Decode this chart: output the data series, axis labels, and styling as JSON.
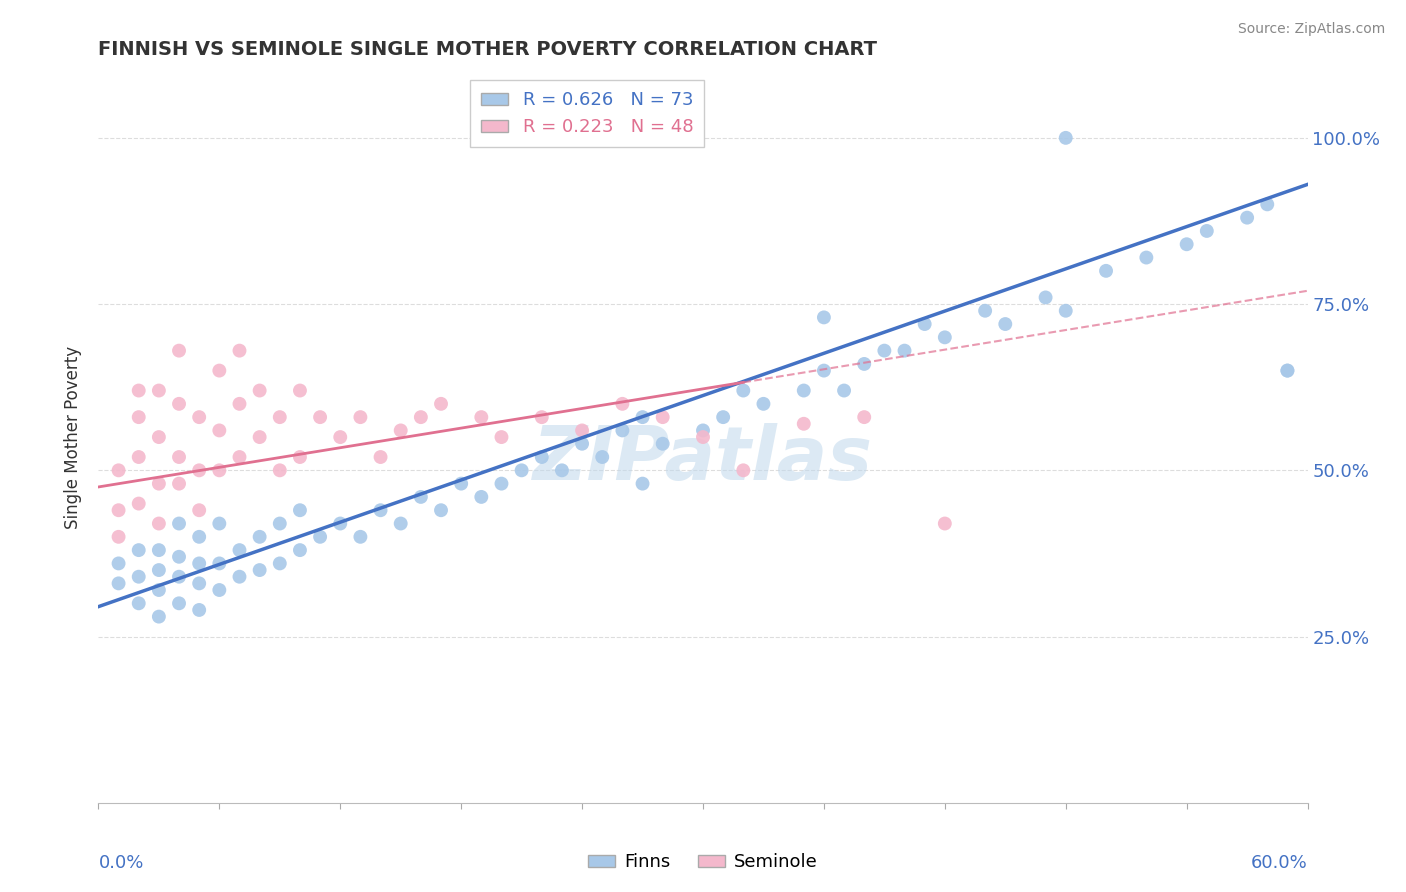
{
  "title": "FINNISH VS SEMINOLE SINGLE MOTHER POVERTY CORRELATION CHART",
  "source": "Source: ZipAtlas.com",
  "ylabel": "Single Mother Poverty",
  "ytick_labels": [
    "25.0%",
    "50.0%",
    "75.0%",
    "100.0%"
  ],
  "ytick_values": [
    0.25,
    0.5,
    0.75,
    1.0
  ],
  "xlim": [
    0.0,
    0.6
  ],
  "ylim": [
    0.0,
    1.1
  ],
  "blue_color": "#a8c8e8",
  "pink_color": "#f4b8cc",
  "blue_line_color": "#4472c4",
  "pink_line_color": "#e07090",
  "watermark": "ZIPatlas",
  "finns_x": [
    0.01,
    0.01,
    0.02,
    0.02,
    0.02,
    0.03,
    0.03,
    0.03,
    0.03,
    0.04,
    0.04,
    0.04,
    0.04,
    0.05,
    0.05,
    0.05,
    0.05,
    0.06,
    0.06,
    0.06,
    0.07,
    0.07,
    0.08,
    0.08,
    0.09,
    0.09,
    0.1,
    0.1,
    0.11,
    0.12,
    0.13,
    0.14,
    0.15,
    0.16,
    0.17,
    0.18,
    0.19,
    0.2,
    0.21,
    0.22,
    0.23,
    0.24,
    0.25,
    0.26,
    0.27,
    0.27,
    0.28,
    0.3,
    0.31,
    0.32,
    0.33,
    0.35,
    0.36,
    0.37,
    0.38,
    0.39,
    0.4,
    0.41,
    0.42,
    0.44,
    0.45,
    0.47,
    0.48,
    0.5,
    0.52,
    0.54,
    0.55,
    0.57,
    0.58,
    0.59,
    0.48,
    0.36,
    0.59
  ],
  "finns_y": [
    0.33,
    0.36,
    0.3,
    0.34,
    0.38,
    0.28,
    0.32,
    0.35,
    0.38,
    0.3,
    0.34,
    0.37,
    0.42,
    0.29,
    0.33,
    0.36,
    0.4,
    0.32,
    0.36,
    0.42,
    0.34,
    0.38,
    0.35,
    0.4,
    0.36,
    0.42,
    0.38,
    0.44,
    0.4,
    0.42,
    0.4,
    0.44,
    0.42,
    0.46,
    0.44,
    0.48,
    0.46,
    0.48,
    0.5,
    0.52,
    0.5,
    0.54,
    0.52,
    0.56,
    0.48,
    0.58,
    0.54,
    0.56,
    0.58,
    0.62,
    0.6,
    0.62,
    0.65,
    0.62,
    0.66,
    0.68,
    0.68,
    0.72,
    0.7,
    0.74,
    0.72,
    0.76,
    0.74,
    0.8,
    0.82,
    0.84,
    0.86,
    0.88,
    0.9,
    0.65,
    1.0,
    0.73,
    0.65
  ],
  "seminole_x": [
    0.01,
    0.01,
    0.01,
    0.02,
    0.02,
    0.02,
    0.02,
    0.03,
    0.03,
    0.03,
    0.03,
    0.04,
    0.04,
    0.04,
    0.04,
    0.05,
    0.05,
    0.05,
    0.06,
    0.06,
    0.06,
    0.07,
    0.07,
    0.07,
    0.08,
    0.08,
    0.09,
    0.09,
    0.1,
    0.1,
    0.11,
    0.12,
    0.13,
    0.14,
    0.15,
    0.16,
    0.17,
    0.19,
    0.2,
    0.22,
    0.24,
    0.26,
    0.28,
    0.3,
    0.32,
    0.35,
    0.38,
    0.42
  ],
  "seminole_y": [
    0.4,
    0.44,
    0.5,
    0.45,
    0.52,
    0.58,
    0.62,
    0.42,
    0.48,
    0.55,
    0.62,
    0.48,
    0.52,
    0.6,
    0.68,
    0.44,
    0.5,
    0.58,
    0.5,
    0.56,
    0.65,
    0.52,
    0.6,
    0.68,
    0.55,
    0.62,
    0.5,
    0.58,
    0.52,
    0.62,
    0.58,
    0.55,
    0.58,
    0.52,
    0.56,
    0.58,
    0.6,
    0.58,
    0.55,
    0.58,
    0.56,
    0.6,
    0.58,
    0.55,
    0.5,
    0.57,
    0.58,
    0.42
  ],
  "finns_line_x0": 0.0,
  "finns_line_x1": 0.6,
  "finns_line_y0": 0.295,
  "finns_line_y1": 0.93,
  "seminole_line_x0": 0.0,
  "seminole_line_x1": 0.6,
  "seminole_line_y0": 0.475,
  "seminole_line_y1": 0.77
}
